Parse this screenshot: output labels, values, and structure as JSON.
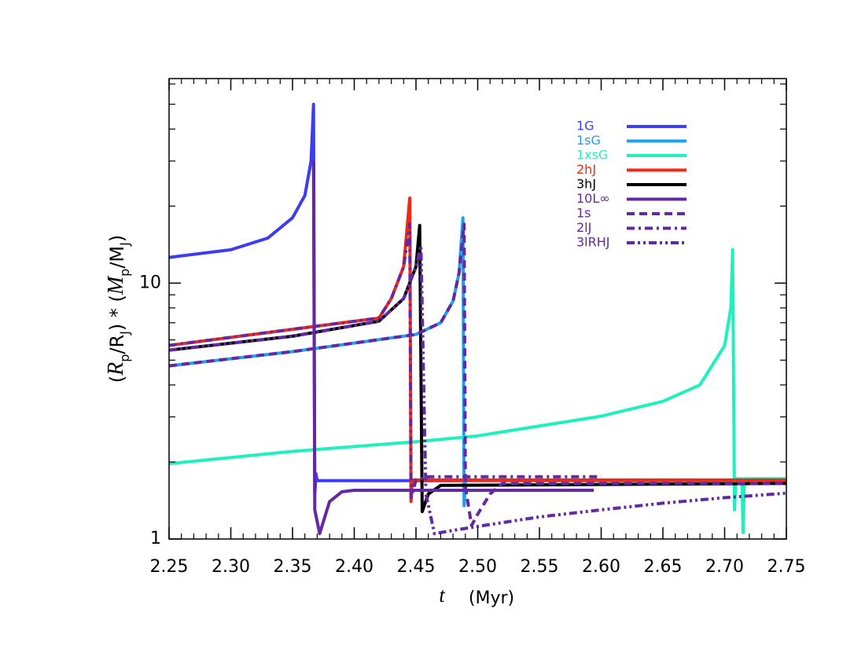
{
  "chart_data": {
    "type": "line",
    "xlabel": [
      "t",
      "(Myr)"
    ],
    "ylabel": [
      "(",
      "R",
      "p",
      "/R",
      "J",
      ") * (",
      "M",
      "p",
      "/M",
      "J",
      ")"
    ],
    "ylabel_styles": [
      "normal",
      "italic",
      "sub",
      "normal",
      "sub",
      "normal",
      "italic",
      "sub",
      "normal",
      "sub",
      "normal"
    ],
    "xlim": [
      2.25,
      2.75
    ],
    "xticks": [
      2.25,
      {
        "value": 2.3,
        "label": "2.30"
      },
      2.35,
      {
        "value": 2.4,
        "label": "2.40"
      },
      2.45,
      {
        "value": 2.5,
        "label": "2.50"
      },
      2.55,
      {
        "value": 2.6,
        "label": "2.60"
      },
      2.65,
      {
        "value": 2.7,
        "label": "2.70"
      },
      2.75
    ],
    "xminorticks": [
      2.26,
      2.27,
      2.28,
      2.29,
      2.31,
      2.32,
      2.33,
      2.34,
      2.36,
      2.37,
      2.38,
      2.39,
      2.41,
      2.42,
      2.43,
      2.44,
      2.46,
      2.47,
      2.48,
      2.49,
      2.51,
      2.52,
      2.53,
      2.54,
      2.56,
      2.57,
      2.58,
      2.59,
      2.61,
      2.62,
      2.63,
      2.64,
      2.66,
      2.67,
      2.68,
      2.69,
      2.71,
      2.72,
      2.73,
      2.74
    ],
    "ylim": [
      1,
      63
    ],
    "yscale": "log",
    "yticks": [
      1,
      10
    ],
    "yminorticks": [
      2,
      3,
      4,
      5,
      6,
      7,
      8,
      9,
      20,
      30,
      40,
      50,
      60
    ],
    "legend": "upper right",
    "series": [
      {
        "name": "1G",
        "color": "#3c3cf0",
        "dash": "solid",
        "x": [
          2.25,
          2.3,
          2.33,
          2.35,
          2.36,
          2.365,
          2.367,
          2.368,
          2.369,
          2.37,
          2.75
        ],
        "values": [
          12.6,
          13.5,
          15,
          18,
          22,
          30,
          50,
          1.5,
          1.8,
          1.69,
          1.69
        ]
      },
      {
        "name": "1sG",
        "color": "#1ea0f0",
        "dash": "solid",
        "x": [
          2.25,
          2.35,
          2.45,
          2.47,
          2.48,
          2.485,
          2.488,
          2.489,
          2.49,
          2.75
        ],
        "values": [
          4.75,
          5.4,
          6.3,
          7.0,
          8.5,
          11,
          18,
          1.35,
          1.69,
          1.69
        ]
      },
      {
        "name": "1xsG",
        "color": "#1ef0c0",
        "dash": "solid",
        "x": [
          2.25,
          2.35,
          2.45,
          2.5,
          2.6,
          2.65,
          2.68,
          2.7,
          2.705,
          2.7065,
          2.708,
          2.709,
          2.714,
          2.715,
          2.716,
          2.75
        ],
        "values": [
          1.97,
          2.2,
          2.4,
          2.53,
          3.02,
          3.45,
          4.0,
          5.7,
          8,
          13.5,
          1.3,
          1.72,
          1.72,
          1.06,
          1.72,
          1.72
        ]
      },
      {
        "name": "2hJ",
        "color": "#f02814",
        "dash": "solid",
        "x": [
          2.25,
          2.35,
          2.42,
          2.43,
          2.44,
          2.445,
          2.446,
          2.447,
          2.75
        ],
        "values": [
          5.71,
          6.6,
          7.3,
          8.7,
          11.6,
          21.5,
          1.4,
          1.7,
          1.7
        ]
      },
      {
        "name": "3hJ",
        "color": "#000000",
        "dash": "solid",
        "x": [
          2.25,
          2.35,
          2.42,
          2.44,
          2.45,
          2.453,
          2.455,
          2.46,
          2.47,
          2.75
        ],
        "values": [
          5.47,
          6.2,
          7.1,
          8.7,
          11.6,
          16.8,
          1.28,
          1.5,
          1.62,
          1.65
        ]
      },
      {
        "name": "10L∞",
        "color": "#6428a0",
        "dash": "solid",
        "x": [
          2.367,
          2.368,
          2.372,
          2.38,
          2.39,
          2.4,
          2.594
        ],
        "values": [
          30,
          1.3,
          1.05,
          1.4,
          1.53,
          1.55,
          1.55
        ]
      },
      {
        "name": "1s",
        "color": "#6428a0",
        "dash": "dashed",
        "x": [
          2.25,
          2.35,
          2.45,
          2.47,
          2.48,
          2.485,
          2.489,
          2.49,
          2.495,
          2.5,
          2.51,
          2.52,
          2.75
        ],
        "values": [
          4.75,
          5.4,
          6.3,
          7.0,
          8.5,
          11,
          17,
          1.6,
          1.13,
          1.25,
          1.5,
          1.65,
          1.65
        ]
      },
      {
        "name": "2lJ",
        "color": "#6428a0",
        "dash": "dashdot",
        "x": [
          2.25,
          2.35,
          2.42,
          2.43,
          2.44,
          2.445,
          2.446,
          2.45,
          2.46,
          2.6
        ],
        "values": [
          5.71,
          6.6,
          7.3,
          8.7,
          11.6,
          17,
          1.45,
          1.7,
          1.75,
          1.75
        ]
      },
      {
        "name": "3lRHJ",
        "color": "#6428a0",
        "dash": "dashdotdot",
        "x": [
          2.25,
          2.35,
          2.42,
          2.44,
          2.45,
          2.454,
          2.458,
          2.465,
          2.48,
          2.5,
          2.55,
          2.6,
          2.65,
          2.7,
          2.75
        ],
        "values": [
          5.47,
          6.2,
          7.1,
          8.7,
          11.6,
          14,
          1.5,
          1.05,
          1.08,
          1.12,
          1.22,
          1.3,
          1.38,
          1.45,
          1.51
        ]
      }
    ]
  }
}
